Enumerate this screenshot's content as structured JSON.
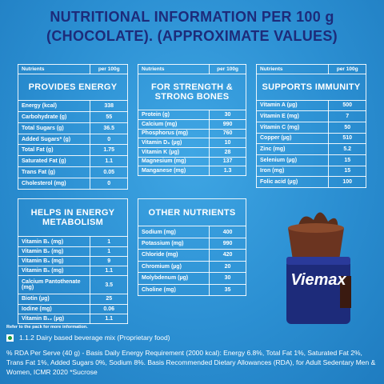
{
  "title": [
    "NUTRITIONAL INFORMATION PER 100 g",
    "(CHOCOLATE). (APPROXIMATE VALUES)"
  ],
  "tables": [
    {
      "header": [
        "Nutrients",
        "per 100g"
      ],
      "section": "PROVIDES ENERGY",
      "rows": [
        [
          "Energy (kcal)",
          "338"
        ],
        [
          "Carbohydrate (g)",
          "55"
        ],
        [
          "Total Sugars (g)",
          "36.5"
        ],
        [
          "Added Sugars* (g)",
          "0"
        ],
        [
          "Total Fat (g)",
          "1.75"
        ],
        [
          "Saturated Fat (g)",
          "1.1"
        ],
        [
          "Trans Fat (g)",
          "0.05"
        ],
        [
          "Cholesterol (mg)",
          "0"
        ]
      ]
    },
    {
      "header": [
        "Nutrients",
        "per 100g"
      ],
      "section": "FOR STRENGTH & STRONG BONES",
      "rows": [
        [
          "Protein (g)",
          "30"
        ],
        [
          "Calcium (mg)",
          "990"
        ],
        [
          "Phosphorus (mg)",
          "760"
        ],
        [
          "Vitamin D₃ (µg)",
          "10"
        ],
        [
          "Vitamin K (µg)",
          "28"
        ],
        [
          "Magnesium (mg)",
          "137"
        ],
        [
          "Manganese (mg)",
          "1.3"
        ]
      ]
    },
    {
      "header": [
        "Nutrients",
        "per 100g"
      ],
      "section": "SUPPORTS IMMUNITY",
      "rows": [
        [
          "Vitamin A (µg)",
          "500"
        ],
        [
          "Vitamin E (mg)",
          "7"
        ],
        [
          "Vitamin C (mg)",
          "50"
        ],
        [
          "Copper (µg)",
          "510"
        ],
        [
          "Zinc (mg)",
          "5.2"
        ],
        [
          "Selenium (µg)",
          "15"
        ],
        [
          "Iron (mg)",
          "15"
        ],
        [
          "Folic acid (µg)",
          "100"
        ]
      ]
    },
    {
      "section": "HELPS IN ENERGY METABOLISM",
      "rows": [
        [
          "Vitamin B₁ (mg)",
          "1"
        ],
        [
          "Vitamin B₂ (mg)",
          "1"
        ],
        [
          "Vitamin B₃ (mg)",
          "9"
        ],
        [
          "Vitamin B₆ (mg)",
          "1.1"
        ],
        [
          "Calcium Pantothenate (mg)",
          "3.5"
        ],
        [
          "Biotin (µg)",
          "25"
        ],
        [
          "Iodine (mg)",
          "0.06"
        ],
        [
          "Vitamin B₁₂ (µg)",
          "1.1"
        ]
      ]
    },
    {
      "section": "OTHER NUTRIENTS",
      "rows": [
        [
          "Sodium (mg)",
          "400"
        ],
        [
          "Potassium (mg)",
          "990"
        ],
        [
          "Chloride (mg)",
          "420"
        ],
        [
          "Chromium (µg)",
          "20"
        ],
        [
          "Molybdenum (µg)",
          "30"
        ],
        [
          "Choline (mg)",
          "35"
        ]
      ]
    }
  ],
  "product": {
    "brand": "Viemax"
  },
  "footer": {
    "note": "Refer to the pack for more information.",
    "category": "1.1.2 Dairy based beverage mix (Proprietary food)",
    "rda": "% RDA Per Serve (40 g) - Basis Daily Energy Requirement (2000 kcal): Energy 6.8%, Total Fat 1%, Saturated Fat 2%, Trans Fat 1%, Added Sugars 0%, Sodium 8%. Basis Recommended Dietary Allowances (RDA), for Adult Sedentary Men & Women, ICMR 2020 *Sucrose"
  }
}
